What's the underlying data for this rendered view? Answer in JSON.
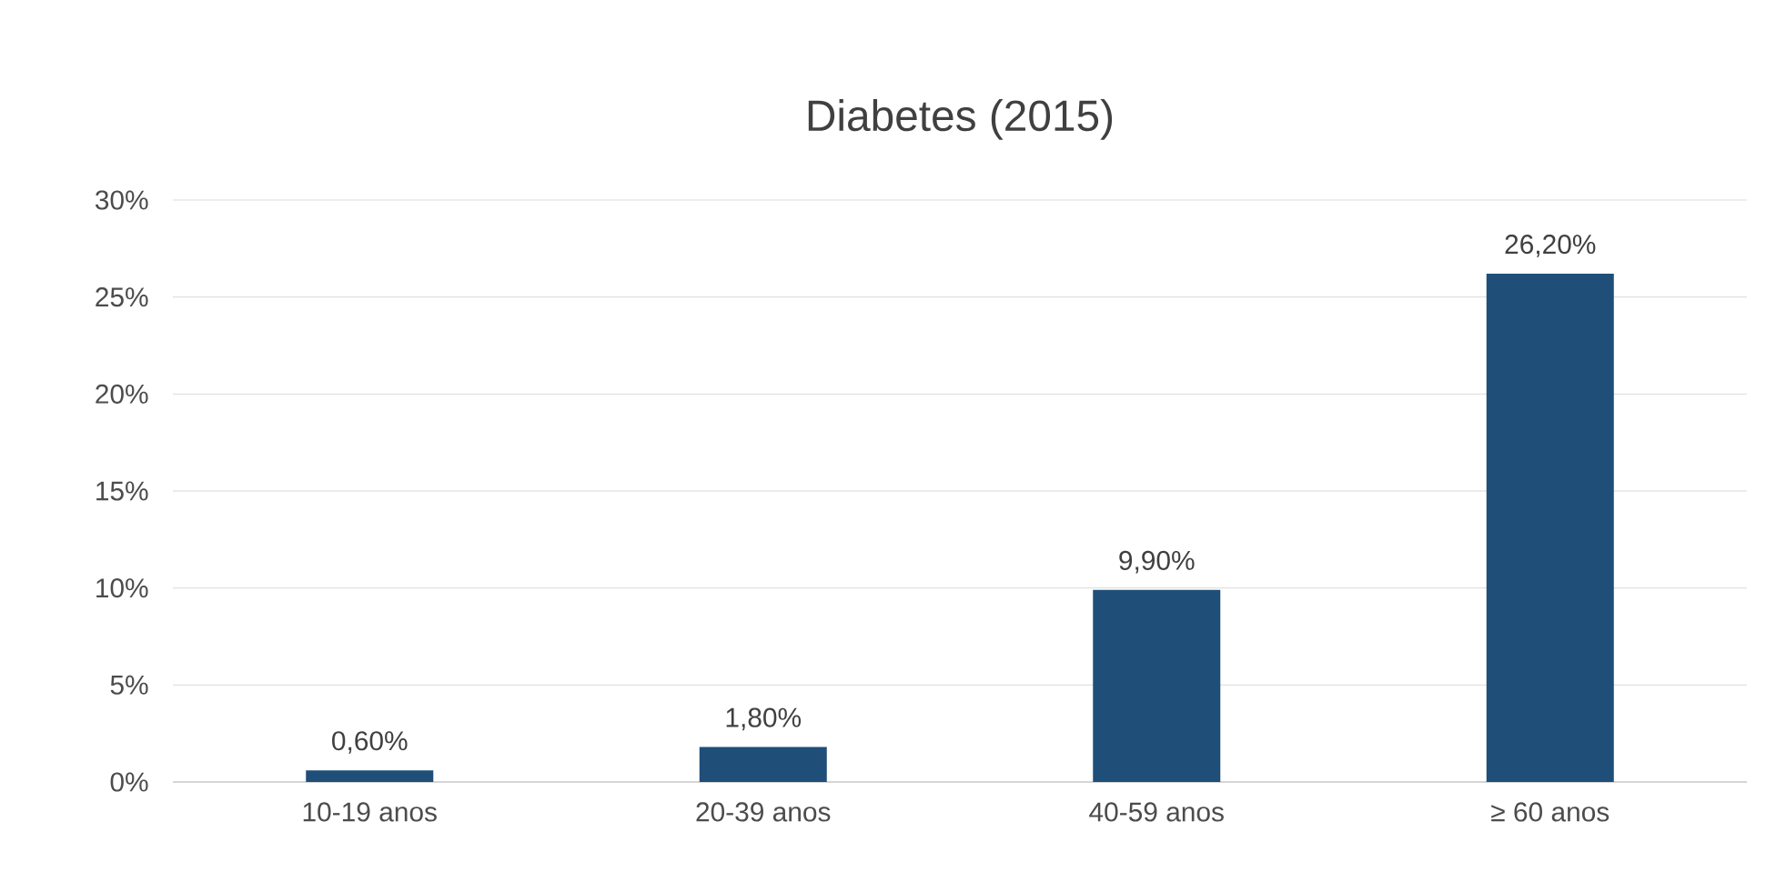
{
  "chart_data": {
    "type": "bar",
    "title": "Diabetes (2015)",
    "categories": [
      "10-19 anos",
      "20-39 anos",
      "40-59 anos",
      "≥ 60 anos"
    ],
    "values": [
      0.6,
      1.8,
      9.9,
      26.2
    ],
    "value_labels": [
      "0,60%",
      "1,80%",
      "9,90%",
      "26,20%"
    ],
    "color": "#1f4e79",
    "ylim": [
      0,
      30
    ],
    "yticks": [
      {
        "value": 0,
        "label": "0%"
      },
      {
        "value": 5,
        "label": "5%"
      },
      {
        "value": 10,
        "label": "10%"
      },
      {
        "value": 15,
        "label": "15%"
      },
      {
        "value": 20,
        "label": "20%"
      },
      {
        "value": 25,
        "label": "25%"
      },
      {
        "value": 30,
        "label": "30%"
      }
    ],
    "grid": "y"
  }
}
